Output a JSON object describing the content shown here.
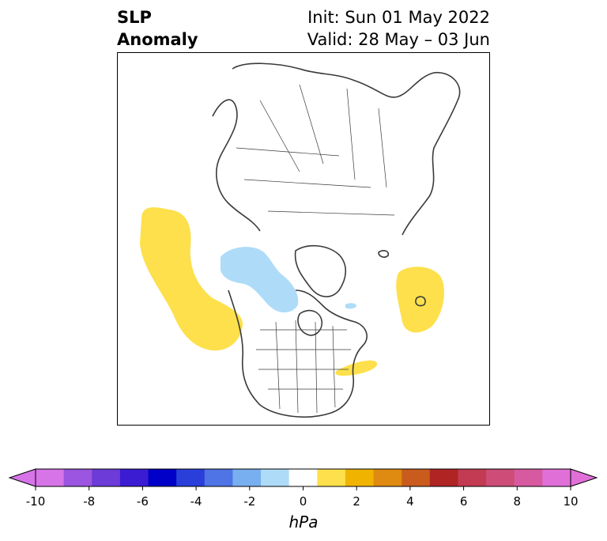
{
  "title": {
    "variable_line1": "SLP",
    "variable_line2": "Anomaly",
    "init_line": "Init: Sun 01 May 2022",
    "valid_line": "Valid: 28 May – 03 Jun"
  },
  "colorbar": {
    "unit_label": "hPa",
    "ticks": [
      "-10",
      "-8",
      "-6",
      "-4",
      "-2",
      "0",
      "2",
      "4",
      "6",
      "8",
      "10"
    ],
    "levels": [
      -10,
      -9,
      -8,
      -7,
      -6,
      -5,
      -4,
      -3,
      -2,
      -1,
      1,
      2,
      3,
      4,
      5,
      6,
      7,
      8,
      9,
      10
    ],
    "colors": [
      "#d774e8",
      "#9b55e0",
      "#6c3bd8",
      "#3c1cd2",
      "#0000c8",
      "#2a3fd9",
      "#4f74e6",
      "#78aff0",
      "#aedcf8",
      "#ffffff",
      "#fde04b",
      "#f0b400",
      "#df8a10",
      "#c95c1c",
      "#b02424",
      "#c23b52",
      "#cd4d78",
      "#d75aa0",
      "#e070d8"
    ],
    "extend": "both"
  },
  "map": {
    "projection": "north-polar-stereographic",
    "anomalies": [
      {
        "sign": "positive",
        "value_range": "1 to 2 hPa",
        "color": "#fde04b",
        "region": "North Pacific"
      },
      {
        "sign": "positive",
        "value_range": "1 to 2 hPa",
        "color": "#fde04b",
        "region": "North Atlantic near British Isles"
      },
      {
        "sign": "positive",
        "value_range": "1 to 2 hPa",
        "color": "#fde04b",
        "region": "Western Atlantic off US East Coast"
      },
      {
        "sign": "negative",
        "value_range": "-2 to -1 hPa",
        "color": "#aedcf8",
        "region": "Alaska / Western Canada"
      }
    ]
  }
}
